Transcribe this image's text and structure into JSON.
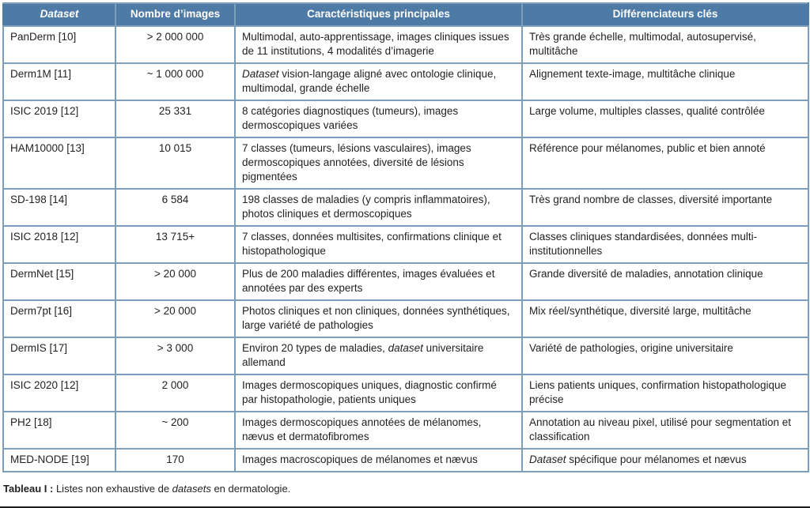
{
  "colors": {
    "header_bg": "#4e7ba6",
    "border": "#7d9fbc",
    "text": "#221f1f"
  },
  "header": {
    "columns": [
      "Dataset",
      "Nombre d’images",
      "Caractéristiques principales",
      "Différenciateurs clés"
    ]
  },
  "rows": [
    {
      "dataset": "PanDerm [10]",
      "nombre_images": "> 2 000 000",
      "caracteristiques": "Multimodal, auto-apprentissage, images cliniques issues de 11 institutions, 4 modalités d’imagerie",
      "differenciateurs": "Très grande échelle, multimodal, autosupervisé, multitâche",
      "lines": "double"
    },
    {
      "dataset": "Derm1M [11]",
      "nombre_images": "~ 1 000 000",
      "caracteristiques": "*Dataset* vision-langage aligné avec ontologie clinique, multimodal, grande échelle",
      "differenciateurs": "Alignement texte-image, multitâche clinique",
      "lines": "double"
    },
    {
      "dataset": "ISIC 2019 [12]",
      "nombre_images": "25 331",
      "caracteristiques": "8 catégories diagnostiques (tumeurs), images dermoscopiques variées",
      "differenciateurs": "Large volume, multiples classes, qualité contrôlée",
      "lines": "double"
    },
    {
      "dataset": "HAM10000 [13]",
      "nombre_images": "10 015",
      "caracteristiques": "7 classes (tumeurs, lésions vasculaires), images dermoscopiques annotées, diversité de lésions pigmentées",
      "differenciateurs": "Référence pour mélanomes, public et bien annoté",
      "lines": "triple"
    },
    {
      "dataset": "SD-198 [14]",
      "nombre_images": "6 584",
      "caracteristiques": "198 classes de maladies (y compris inflammatoires), photos cliniques et dermoscopiques",
      "differenciateurs": "Très grand nombre de classes, diversité importante",
      "lines": "double"
    },
    {
      "dataset": "ISIC 2018 [12]",
      "nombre_images": "13 715+",
      "caracteristiques": "7 classes, données multisites, confirmations clinique et histopathologique",
      "differenciateurs": "Classes cliniques standardisées, données multi-institutionnelles",
      "lines": "double"
    },
    {
      "dataset": "DermNet [15]",
      "nombre_images": "> 20 000",
      "caracteristiques": "Plus de 200 maladies différentes, images évaluées et annotées par des experts",
      "differenciateurs": "Grande diversité de maladies, annotation clinique",
      "lines": "double"
    },
    {
      "dataset": "Derm7pt [16]",
      "nombre_images": "> 20 000",
      "caracteristiques": "Photos cliniques et non cliniques, données synthétiques, large variété de pathologies",
      "differenciateurs": "Mix réel/synthétique, diversité large, multitâche",
      "lines": "double"
    },
    {
      "dataset": "DermIS [17]",
      "nombre_images": "> 3 000",
      "caracteristiques": "Environ 20 types de maladies, *dataset* universitaire allemand",
      "differenciateurs": "Variété de pathologies, origine universitaire",
      "lines": "double"
    },
    {
      "dataset": "ISIC 2020 [12]",
      "nombre_images": "2 000",
      "caracteristiques": "Images dermoscopiques uniques, diagnostic confirmé par histopathologie, patients uniques",
      "differenciateurs": "Liens patients uniques, confirmation histopathologique précise",
      "lines": "double"
    },
    {
      "dataset": "PH2 [18]",
      "nombre_images": "~ 200",
      "caracteristiques": "Images dermoscopiques annotées de mélanomes, nævus et dermatofibromes",
      "differenciateurs": "Annotation au niveau pixel, utilisé pour segmentation et classification",
      "lines": "double"
    },
    {
      "dataset": "MED-NODE [19]",
      "nombre_images": "170",
      "caracteristiques": "Images macroscopiques de mélanomes et nævus",
      "differenciateurs": "*Dataset* spécifique pour mélanomes et nævus",
      "lines": "single"
    }
  ],
  "caption": {
    "label": "Tableau I :",
    "text": "Listes non exhaustive de *datasets* en dermatologie."
  }
}
